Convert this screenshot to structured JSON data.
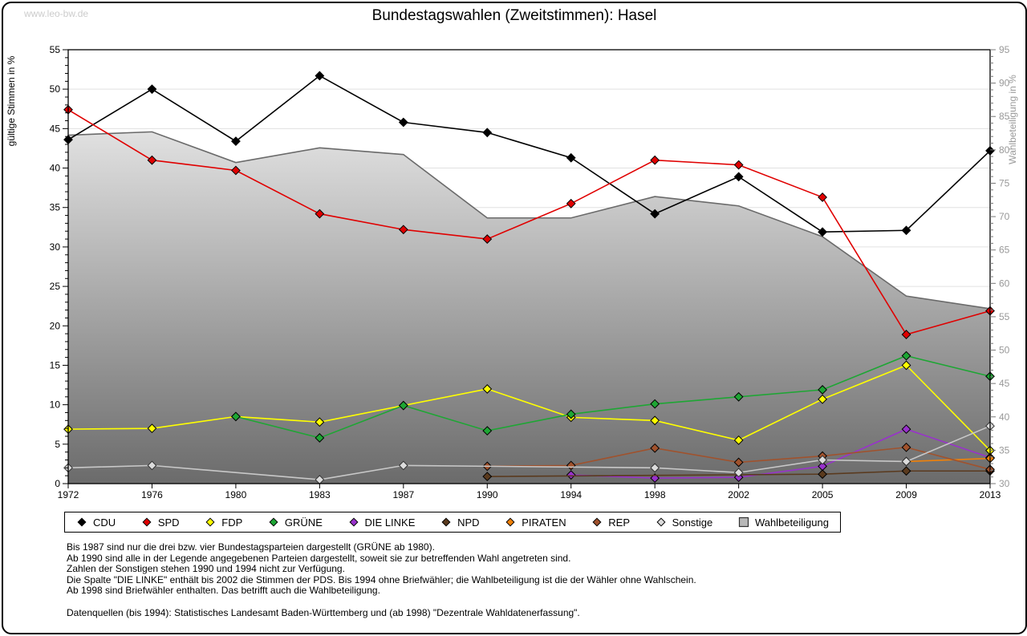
{
  "watermark": "www.leo-bw.de",
  "title": "Bundestagswahlen (Zweitstimmen): Hasel",
  "chart_data": {
    "type": "line",
    "categories": [
      "1972",
      "1976",
      "1980",
      "1983",
      "1987",
      "1990",
      "1994",
      "1998",
      "2002",
      "2005",
      "2009",
      "2013"
    ],
    "left_axis": {
      "label": "gültige Stimmen in %",
      "range": [
        0,
        55
      ],
      "tick_step": 5,
      "minor_step": 1,
      "text_color": "#000000"
    },
    "right_axis": {
      "label": "Wahlbeteiligung in %",
      "range": [
        30,
        95
      ],
      "tick_step": 5,
      "minor_step": 1,
      "text_color": "#999999"
    },
    "grid": true,
    "grid_color": "#e0e0e0",
    "legend_position": "bottom",
    "series": [
      {
        "name": "CDU",
        "color": "#000000",
        "axis": "left",
        "marker": "diamond",
        "values": [
          43.6,
          50.0,
          43.4,
          51.7,
          45.8,
          44.5,
          41.3,
          34.2,
          38.9,
          31.9,
          32.1,
          42.2
        ]
      },
      {
        "name": "SPD",
        "color": "#e00000",
        "axis": "left",
        "marker": "diamond",
        "values": [
          47.4,
          41.0,
          39.7,
          34.2,
          32.2,
          31.0,
          35.5,
          41.0,
          40.4,
          36.3,
          18.9,
          21.9
        ]
      },
      {
        "name": "FDP",
        "color": "#ffff00",
        "axis": "left",
        "marker": "diamond",
        "values": [
          6.9,
          7.0,
          8.5,
          7.8,
          9.9,
          12.0,
          8.4,
          8.0,
          5.5,
          10.7,
          15.0,
          4.2
        ]
      },
      {
        "name": "GRÜNE",
        "color": "#1ea634",
        "axis": "left",
        "marker": "diamond",
        "values": [
          null,
          null,
          8.5,
          5.8,
          9.9,
          6.7,
          8.8,
          10.1,
          11.0,
          11.9,
          16.2,
          13.6
        ]
      },
      {
        "name": "DIE LINKE",
        "color": "#9932cc",
        "axis": "left",
        "marker": "diamond",
        "values": [
          null,
          null,
          null,
          null,
          null,
          null,
          1.1,
          0.7,
          0.8,
          2.2,
          6.9,
          3.3
        ]
      },
      {
        "name": "NPD",
        "color": "#5a3a1e",
        "axis": "left",
        "marker": "diamond",
        "values": [
          null,
          null,
          null,
          null,
          null,
          0.9,
          null,
          null,
          null,
          1.2,
          1.6,
          1.6
        ]
      },
      {
        "name": "PIRATEN",
        "color": "#f08109",
        "axis": "left",
        "marker": "diamond",
        "values": [
          null,
          null,
          null,
          null,
          null,
          null,
          null,
          null,
          null,
          null,
          2.8,
          3.2
        ]
      },
      {
        "name": "REP",
        "color": "#a0522d",
        "axis": "left",
        "marker": "diamond",
        "values": [
          null,
          null,
          null,
          null,
          null,
          2.2,
          2.3,
          4.5,
          2.7,
          3.5,
          4.6,
          1.8
        ]
      },
      {
        "name": "Sonstige",
        "color": "#c8c8c8",
        "marker_fill": "#dcdcdc",
        "axis": "left",
        "marker": "diamond",
        "values": [
          2.0,
          2.3,
          null,
          0.5,
          2.3,
          null,
          null,
          2.0,
          1.4,
          3.0,
          2.8,
          7.3
        ]
      },
      {
        "name": "Wahlbeteiligung",
        "color": "#6a6a6a",
        "axis": "right",
        "type": "area",
        "marker": "square",
        "fill_gradient": [
          "#fcfcfc",
          "#6b6b6b"
        ],
        "values": [
          82.2,
          82.7,
          78.1,
          80.3,
          79.3,
          69.8,
          69.8,
          73.0,
          71.6,
          67.0,
          58.1,
          56.2
        ]
      }
    ]
  },
  "footnotes": [
    "Bis 1987 sind nur die drei bzw. vier Bundestagsparteien dargestellt (GRÜNE ab 1980).",
    "Ab 1990 sind alle in der Legende angegebenen Parteien dargestellt, soweit sie zur betreffenden Wahl angetreten sind.",
    "Zahlen der Sonstigen stehen 1990 und 1994 nicht zur Verfügung.",
    "Die Spalte \"DIE LINKE\" enthält bis 2002 die Stimmen der PDS. Bis 1994 ohne Briefwähler; die Wahlbeteiligung ist die der Wähler ohne Wahlschein.",
    "Ab 1998 sind Briefwähler enthalten. Das betrifft auch die Wahlbeteiligung."
  ],
  "source": "Datenquellen (bis 1994): Statistisches Landesamt Baden-Württemberg und (ab 1998) \"Dezentrale Wahldatenerfassung\"."
}
